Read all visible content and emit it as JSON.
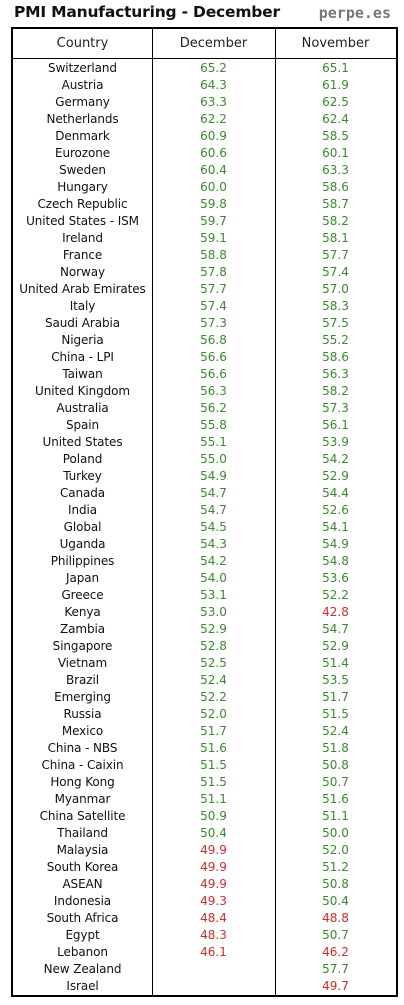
{
  "title": "PMI Manufacturing - December",
  "brand": "perpe.es",
  "colors": {
    "above50": "#3a8a2e",
    "below50": "#d42a2a"
  },
  "headers": {
    "country": "Country",
    "december": "December",
    "november": "November"
  },
  "rows": [
    {
      "country": "Switzerland",
      "december": "65.2",
      "november": "65.1"
    },
    {
      "country": "Austria",
      "december": "64.3",
      "november": "61.9"
    },
    {
      "country": "Germany",
      "december": "63.3",
      "november": "62.5"
    },
    {
      "country": "Netherlands",
      "december": "62.2",
      "november": "62.4"
    },
    {
      "country": "Denmark",
      "december": "60.9",
      "november": "58.5"
    },
    {
      "country": "Eurozone",
      "december": "60.6",
      "november": "60.1"
    },
    {
      "country": "Sweden",
      "december": "60.4",
      "november": "63.3"
    },
    {
      "country": "Hungary",
      "december": "60.0",
      "november": "58.6"
    },
    {
      "country": "Czech Republic",
      "december": "59.8",
      "november": "58.7"
    },
    {
      "country": "United States - ISM",
      "december": "59.7",
      "november": "58.2"
    },
    {
      "country": "Ireland",
      "december": "59.1",
      "november": "58.1"
    },
    {
      "country": "France",
      "december": "58.8",
      "november": "57.7"
    },
    {
      "country": "Norway",
      "december": "57.8",
      "november": "57.4"
    },
    {
      "country": "United Arab Emirates",
      "december": "57.7",
      "november": "57.0"
    },
    {
      "country": "Italy",
      "december": "57.4",
      "november": "58.3"
    },
    {
      "country": "Saudi Arabia",
      "december": "57.3",
      "november": "57.5"
    },
    {
      "country": "Nigeria",
      "december": "56.8",
      "november": "55.2"
    },
    {
      "country": "China - LPI",
      "december": "56.6",
      "november": "58.6"
    },
    {
      "country": "Taiwan",
      "december": "56.6",
      "november": "56.3"
    },
    {
      "country": "United Kingdom",
      "december": "56.3",
      "november": "58.2"
    },
    {
      "country": "Australia",
      "december": "56.2",
      "november": "57.3"
    },
    {
      "country": "Spain",
      "december": "55.8",
      "november": "56.1"
    },
    {
      "country": "United States",
      "december": "55.1",
      "november": "53.9"
    },
    {
      "country": "Poland",
      "december": "55.0",
      "november": "54.2"
    },
    {
      "country": "Turkey",
      "december": "54.9",
      "november": "52.9"
    },
    {
      "country": "Canada",
      "december": "54.7",
      "november": "54.4"
    },
    {
      "country": "India",
      "december": "54.7",
      "november": "52.6"
    },
    {
      "country": "Global",
      "december": "54.5",
      "november": "54.1"
    },
    {
      "country": "Uganda",
      "december": "54.3",
      "november": "54.9"
    },
    {
      "country": "Philippines",
      "december": "54.2",
      "november": "54.8"
    },
    {
      "country": "Japan",
      "december": "54.0",
      "november": "53.6"
    },
    {
      "country": "Greece",
      "december": "53.1",
      "november": "52.2"
    },
    {
      "country": "Kenya",
      "december": "53.0",
      "november": "42.8"
    },
    {
      "country": "Zambia",
      "december": "52.9",
      "november": "54.7"
    },
    {
      "country": "Singapore",
      "december": "52.8",
      "november": "52.9"
    },
    {
      "country": "Vietnam",
      "december": "52.5",
      "november": "51.4"
    },
    {
      "country": "Brazil",
      "december": "52.4",
      "november": "53.5"
    },
    {
      "country": "Emerging",
      "december": "52.2",
      "november": "51.7"
    },
    {
      "country": "Russia",
      "december": "52.0",
      "november": "51.5"
    },
    {
      "country": "Mexico",
      "december": "51.7",
      "november": "52.4"
    },
    {
      "country": "China - NBS",
      "december": "51.6",
      "november": "51.8"
    },
    {
      "country": "China - Caixin",
      "december": "51.5",
      "november": "50.8"
    },
    {
      "country": "Hong Kong",
      "december": "51.5",
      "november": "50.7"
    },
    {
      "country": "Myanmar",
      "december": "51.1",
      "november": "51.6"
    },
    {
      "country": "China Satellite",
      "december": "50.9",
      "november": "51.1"
    },
    {
      "country": "Thailand",
      "december": "50.4",
      "november": "50.0"
    },
    {
      "country": "Malaysia",
      "december": "49.9",
      "november": "52.0"
    },
    {
      "country": "South Korea",
      "december": "49.9",
      "november": "51.2"
    },
    {
      "country": "ASEAN",
      "december": "49.9",
      "november": "50.8"
    },
    {
      "country": "Indonesia",
      "december": "49.3",
      "november": "50.4"
    },
    {
      "country": "South Africa",
      "december": "48.4",
      "november": "48.8"
    },
    {
      "country": "Egypt",
      "december": "48.3",
      "november": "50.7"
    },
    {
      "country": "Lebanon",
      "december": "46.1",
      "november": "46.2"
    },
    {
      "country": "New Zealand",
      "december": "",
      "november": "57.7"
    },
    {
      "country": "Israel",
      "december": "",
      "november": "49.7"
    }
  ]
}
